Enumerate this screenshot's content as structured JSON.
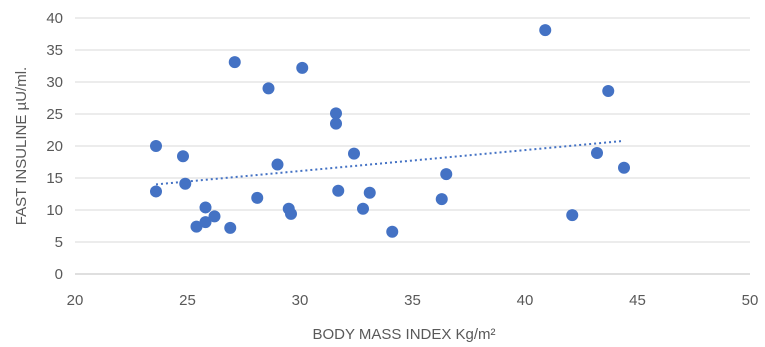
{
  "chart_data": {
    "type": "scatter",
    "title": "",
    "xlabel": "BODY MASS INDEX Kg/m²",
    "ylabel": "FAST INSULINE  µU/ml.",
    "xlim": [
      20,
      50
    ],
    "ylim": [
      0,
      40
    ],
    "x_ticks": [
      20,
      25,
      30,
      35,
      40,
      45,
      50
    ],
    "y_ticks": [
      0,
      5,
      10,
      15,
      20,
      25,
      30,
      35,
      40
    ],
    "grid": "horizontal",
    "legend": "none",
    "trendline": {
      "type": "linear",
      "style": "dotted",
      "x_range": [
        23.6,
        44.4
      ],
      "y_range": [
        14.0,
        20.8
      ]
    },
    "marker_color": "#4472C4",
    "series": [
      {
        "points": [
          {
            "x": 23.6,
            "y": 20.0
          },
          {
            "x": 23.6,
            "y": 12.9
          },
          {
            "x": 24.8,
            "y": 18.4
          },
          {
            "x": 24.9,
            "y": 14.1
          },
          {
            "x": 25.4,
            "y": 7.4
          },
          {
            "x": 25.8,
            "y": 8.1
          },
          {
            "x": 25.8,
            "y": 10.4
          },
          {
            "x": 26.2,
            "y": 9.0
          },
          {
            "x": 26.9,
            "y": 7.2
          },
          {
            "x": 27.1,
            "y": 33.1
          },
          {
            "x": 28.1,
            "y": 11.9
          },
          {
            "x": 28.6,
            "y": 29.0
          },
          {
            "x": 29.0,
            "y": 17.1
          },
          {
            "x": 29.5,
            "y": 10.2
          },
          {
            "x": 29.6,
            "y": 9.4
          },
          {
            "x": 30.1,
            "y": 32.2
          },
          {
            "x": 31.6,
            "y": 25.1
          },
          {
            "x": 31.6,
            "y": 23.5
          },
          {
            "x": 31.7,
            "y": 13.0
          },
          {
            "x": 32.4,
            "y": 18.8
          },
          {
            "x": 32.8,
            "y": 10.2
          },
          {
            "x": 33.1,
            "y": 12.7
          },
          {
            "x": 34.1,
            "y": 6.6
          },
          {
            "x": 36.3,
            "y": 11.7
          },
          {
            "x": 36.5,
            "y": 15.6
          },
          {
            "x": 40.9,
            "y": 38.1
          },
          {
            "x": 42.1,
            "y": 9.2
          },
          {
            "x": 43.2,
            "y": 18.9
          },
          {
            "x": 43.7,
            "y": 28.6
          },
          {
            "x": 44.4,
            "y": 16.6
          }
        ]
      }
    ]
  }
}
